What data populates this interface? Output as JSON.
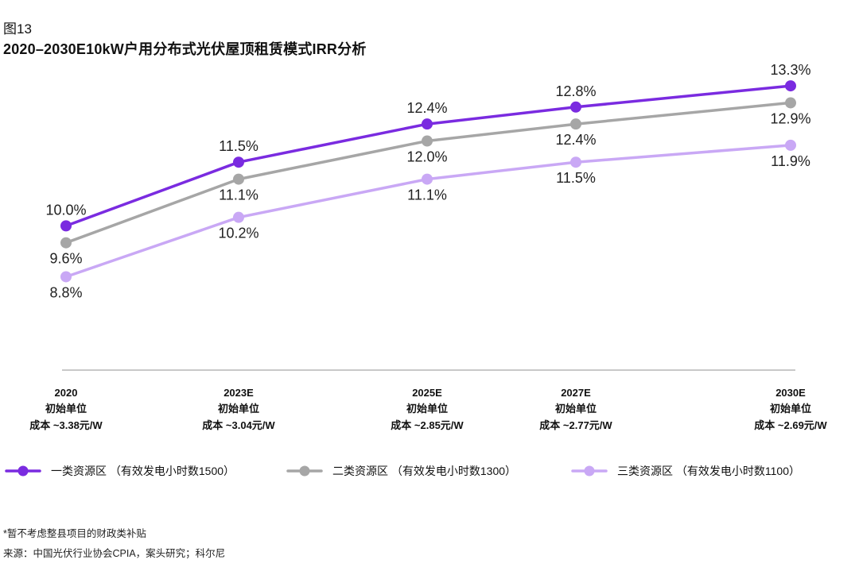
{
  "figure_label": "图13",
  "chart_data": {
    "type": "line",
    "title": "2020–2030E10kW户用分布式光伏屋顶租赁模式IRR分析",
    "x_categories": [
      {
        "year": "2020",
        "line1": "初始单位",
        "line2": "成本 ~3.38元/W"
      },
      {
        "year": "2023E",
        "line1": "初始单位",
        "line2": "成本 ~3.04元/W"
      },
      {
        "year": "2025E",
        "line1": "初始单位",
        "line2": "成本 ~2.85元/W"
      },
      {
        "year": "2027E",
        "line1": "初始单位",
        "line2": "成本 ~2.77元/W"
      },
      {
        "year": "2030E",
        "line1": "初始单位",
        "line2": "成本 ~2.69元/W"
      }
    ],
    "series": [
      {
        "name": "一类资源区 （有效发电小时数1500）",
        "color": "#7a2be0",
        "values": [
          10.0,
          11.5,
          12.4,
          12.8,
          13.3
        ],
        "labels": [
          "10.0%",
          "11.5%",
          "12.4%",
          "12.8%",
          "13.3%"
        ]
      },
      {
        "name": "二类资源区 （有效发电小时数1300）",
        "color": "#a6a6a6",
        "values": [
          9.6,
          11.1,
          12.0,
          12.4,
          12.9
        ],
        "labels": [
          "9.6%",
          "11.1%",
          "12.0%",
          "12.4%",
          "12.9%"
        ]
      },
      {
        "name": "三类资源区 （有效发电小时数1100）",
        "color": "#c9a8f5",
        "values": [
          8.8,
          10.2,
          11.1,
          11.5,
          11.9
        ],
        "labels": [
          "8.8%",
          "10.2%",
          "11.1%",
          "11.5%",
          "11.9%"
        ]
      }
    ],
    "ylim": [
      6.6,
      14.2
    ],
    "grid": false,
    "legend_position": "bottom"
  },
  "footnotes": {
    "note": "*暂不考虑整县项目的财政类补贴",
    "source": "来源：中国光伏行业协会CPIA，案头研究；科尔尼"
  }
}
